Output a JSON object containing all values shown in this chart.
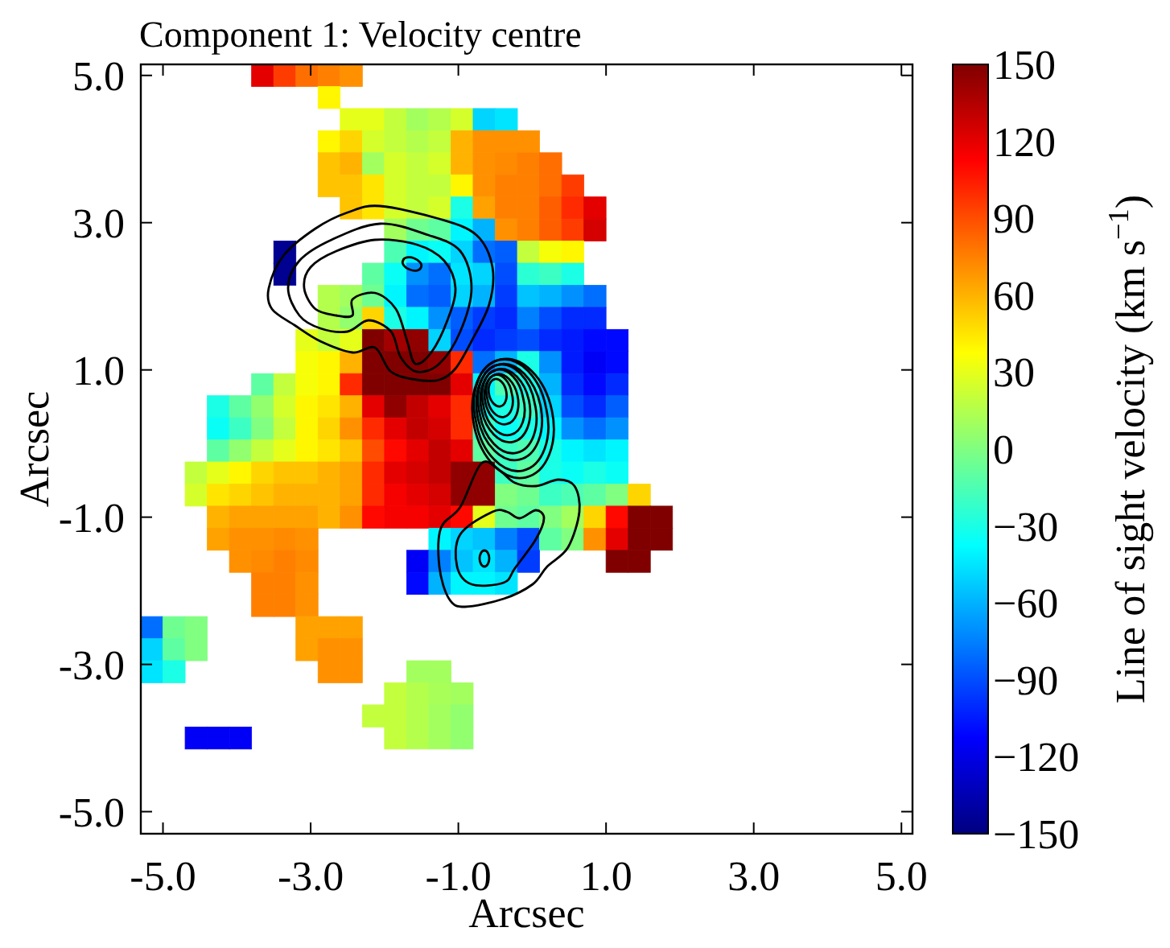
{
  "chart_data": {
    "type": "scatter",
    "title": "Component 1: Velocity centre",
    "xlabel": "Arcsec",
    "ylabel": "Arcsec",
    "clabel": "Line of sight velocity (km s$^{−1}$)",
    "marker": "square",
    "x": [
      -3.65,
      -3.35,
      -3.05,
      -2.75,
      -2.45,
      -2.75,
      -2.45,
      -2.15,
      -1.85,
      -1.55,
      -1.25,
      -0.95,
      -0.65,
      -0.35,
      -2.75,
      -2.45,
      -2.15,
      -1.85,
      -1.55,
      -1.25,
      -0.95,
      -0.65,
      -0.35,
      -0.05,
      -2.75,
      -2.45,
      -2.15,
      -1.85,
      -1.55,
      -1.25,
      -0.95,
      -0.65,
      -0.35,
      -0.05,
      0.25,
      -2.75,
      -2.45,
      -2.15,
      -1.85,
      -1.55,
      -1.25,
      -0.95,
      -0.65,
      -0.35,
      -0.05,
      0.25,
      0.55,
      -2.45,
      -2.15,
      -1.85,
      -1.55,
      -1.25,
      -0.95,
      -0.65,
      -0.35,
      -0.05,
      0.25,
      0.55,
      0.85,
      -1.85,
      -1.55,
      -1.25,
      -0.95,
      -0.65,
      -0.35,
      -0.05,
      0.25,
      0.55,
      0.85,
      -3.35,
      -1.85,
      -1.55,
      -1.25,
      -0.95,
      -0.65,
      -0.35,
      -0.05,
      0.25,
      0.55,
      -3.35,
      -2.15,
      -1.85,
      -1.55,
      -1.25,
      -0.95,
      -0.65,
      -0.35,
      -0.05,
      0.25,
      0.55,
      -2.75,
      -2.45,
      -2.15,
      -1.85,
      -1.55,
      -1.25,
      -0.95,
      -0.65,
      -0.35,
      -0.05,
      0.25,
      0.55,
      0.85,
      -2.75,
      -2.45,
      -2.15,
      -1.85,
      -1.55,
      -1.25,
      -0.95,
      -0.65,
      -0.35,
      -0.05,
      0.25,
      0.55,
      0.85,
      -3.05,
      -2.75,
      -2.45,
      -2.15,
      -1.85,
      -1.55,
      -1.25,
      -0.95,
      -0.65,
      -0.35,
      -0.05,
      0.25,
      0.55,
      0.85,
      1.15,
      -3.05,
      -2.75,
      -2.45,
      -2.15,
      -1.85,
      -1.55,
      -1.25,
      -0.95,
      -0.65,
      -0.35,
      -0.05,
      0.25,
      0.55,
      0.85,
      1.15,
      -3.65,
      -3.35,
      -3.05,
      -2.75,
      -2.45,
      -2.15,
      -1.85,
      -1.55,
      -1.25,
      -0.95,
      -0.65,
      -0.35,
      -0.05,
      0.25,
      0.55,
      0.85,
      1.15,
      -4.25,
      -3.95,
      -3.65,
      -3.35,
      -3.05,
      -2.75,
      -2.45,
      -2.15,
      -1.85,
      -1.55,
      -1.25,
      -0.95,
      -0.65,
      -0.35,
      -0.05,
      0.25,
      0.55,
      0.85,
      1.15,
      -4.25,
      -3.95,
      -3.65,
      -3.35,
      -3.05,
      -2.75,
      -2.45,
      -2.15,
      -1.85,
      -1.55,
      -1.25,
      -0.95,
      -0.65,
      -0.35,
      -0.05,
      0.25,
      0.55,
      0.85,
      1.15,
      -4.25,
      -3.95,
      -3.65,
      -3.35,
      -3.05,
      -2.75,
      -2.45,
      -2.15,
      -1.85,
      -1.55,
      -1.25,
      -0.95,
      -0.65,
      -0.35,
      -0.05,
      0.25,
      0.55,
      0.85,
      1.15,
      -4.55,
      -4.25,
      -3.95,
      -3.65,
      -3.35,
      -3.05,
      -2.75,
      -2.45,
      -2.15,
      -1.85,
      -1.55,
      -1.25,
      -0.95,
      -0.65,
      -0.35,
      -0.05,
      0.25,
      0.55,
      0.85,
      1.15,
      -4.55,
      -4.25,
      -3.95,
      -3.65,
      -3.35,
      -3.05,
      -2.75,
      -2.45,
      -2.15,
      -1.85,
      -1.55,
      -1.25,
      -0.95,
      -0.65,
      -0.35,
      -0.05,
      0.25,
      0.55,
      0.85,
      1.15,
      1.45,
      -4.25,
      -3.95,
      -3.65,
      -3.35,
      -3.05,
      -2.75,
      -2.45,
      -2.15,
      -1.85,
      -1.55,
      -1.25,
      -0.95,
      -0.65,
      -0.35,
      -0.05,
      0.25,
      0.55,
      0.85,
      1.15,
      1.45,
      1.75,
      -4.25,
      -3.95,
      -3.65,
      -3.35,
      -3.05,
      -1.25,
      -0.95,
      -0.65,
      -0.35,
      -0.05,
      0.25,
      0.55,
      0.85,
      1.15,
      1.45,
      1.75,
      -3.95,
      -3.65,
      -3.35,
      -3.05,
      -1.55,
      -1.25,
      -0.95,
      -0.65,
      -0.35,
      -0.05,
      1.15,
      1.45,
      -3.65,
      -3.35,
      -3.05,
      -1.55,
      -1.25,
      -0.95,
      -0.65,
      -0.35,
      -3.65,
      -3.35,
      -3.05,
      -5.15,
      -4.85,
      -4.55,
      -3.05,
      -2.75,
      -2.45,
      -5.15,
      -4.85,
      -4.55,
      -3.05,
      -2.75,
      -2.45,
      -5.15,
      -4.85,
      -2.75,
      -2.45,
      -1.55,
      -1.25,
      -1.85,
      -1.55,
      -1.25,
      -0.95,
      -2.15,
      -1.85,
      -1.55,
      -1.25,
      -0.95,
      -4.55,
      -4.25,
      -3.95,
      -1.85,
      -1.55,
      -1.25,
      -0.95
    ],
    "values": [
      5,
      5,
      5,
      5,
      5,
      4.7,
      4.4,
      4.4,
      4.4,
      4.4,
      4.4,
      4.4,
      4.4,
      4.4,
      4.1,
      4.1,
      4.1,
      4.1,
      4.1,
      4.1,
      4.1,
      4.1,
      4.1,
      4.1,
      3.8,
      3.8,
      3.8,
      3.8,
      3.8,
      3.8,
      3.8,
      3.8,
      3.8,
      3.8,
      3.8,
      3.5,
      3.5,
      3.5,
      3.5,
      3.5,
      3.5,
      3.5,
      3.5,
      3.5,
      3.5,
      3.5,
      3.5,
      3.2,
      3.2,
      3.2,
      3.2,
      3.2,
      3.2,
      3.2,
      3.2,
      3.2,
      3.2,
      3.2,
      3.2,
      2.9,
      2.9,
      2.9,
      2.9,
      2.9,
      2.9,
      2.9,
      2.9,
      2.9,
      2.9,
      2.6,
      2.6,
      2.6,
      2.6,
      2.6,
      2.6,
      2.6,
      2.6,
      2.6,
      2.6,
      2.3,
      2.3,
      2.3,
      2.3,
      2.3,
      2.3,
      2.3,
      2.3,
      2.3,
      2.3,
      2.3,
      2,
      2,
      2,
      2,
      2,
      2,
      2,
      2,
      2,
      2,
      2,
      2,
      2,
      1.7,
      1.7,
      1.7,
      1.7,
      1.7,
      1.7,
      1.7,
      1.7,
      1.7,
      1.7,
      1.7,
      1.7,
      1.7,
      1.4,
      1.4,
      1.4,
      1.4,
      1.4,
      1.4,
      1.4,
      1.4,
      1.4,
      1.4,
      1.4,
      1.4,
      1.4,
      1.4,
      1.4,
      1.1,
      1.1,
      1.1,
      1.1,
      1.1,
      1.1,
      1.1,
      1.1,
      1.1,
      1.1,
      1.1,
      1.1,
      1.1,
      1.1,
      1.1,
      0.8,
      0.8,
      0.8,
      0.8,
      0.8,
      0.8,
      0.8,
      0.8,
      0.8,
      0.8,
      0.8,
      0.8,
      0.8,
      0.8,
      0.8,
      0.8,
      0.8,
      0.5,
      0.5,
      0.5,
      0.5,
      0.5,
      0.5,
      0.5,
      0.5,
      0.5,
      0.5,
      0.5,
      0.5,
      0.5,
      0.5,
      0.5,
      0.5,
      0.5,
      0.5,
      0.5,
      0.2,
      0.2,
      0.2,
      0.2,
      0.2,
      0.2,
      0.2,
      0.2,
      0.2,
      0.2,
      0.2,
      0.2,
      0.2,
      0.2,
      0.2,
      0.2,
      0.2,
      0.2,
      0.2,
      -0.1,
      -0.1,
      -0.1,
      -0.1,
      -0.1,
      -0.1,
      -0.1,
      -0.1,
      -0.1,
      -0.1,
      -0.1,
      -0.1,
      -0.1,
      -0.1,
      -0.1,
      -0.1,
      -0.1,
      -0.1,
      -0.1,
      -0.4,
      -0.4,
      -0.4,
      -0.4,
      -0.4,
      -0.4,
      -0.4,
      -0.4,
      -0.4,
      -0.4,
      -0.4,
      -0.4,
      -0.4,
      -0.4,
      -0.4,
      -0.4,
      -0.4,
      -0.4,
      -0.4,
      -0.4,
      -0.7,
      -0.7,
      -0.7,
      -0.7,
      -0.7,
      -0.7,
      -0.7,
      -0.7,
      -0.7,
      -0.7,
      -0.7,
      -0.7,
      -0.7,
      -0.7,
      -0.7,
      -0.7,
      -0.7,
      -0.7,
      -0.7,
      -0.7,
      -0.7,
      -1,
      -1,
      -1,
      -1,
      -1,
      -1,
      -1,
      -1,
      -1,
      -1,
      -1,
      -1,
      -1,
      -1,
      -1,
      -1,
      -1,
      -1,
      -1,
      -1,
      -1,
      -1.3,
      -1.3,
      -1.3,
      -1.3,
      -1.3,
      -1.3,
      -1.3,
      -1.3,
      -1.3,
      -1.3,
      -1.3,
      -1.3,
      -1.3,
      -1.3,
      -1.3,
      -1.3,
      -1.6,
      -1.6,
      -1.6,
      -1.6,
      -1.6,
      -1.6,
      -1.6,
      -1.6,
      -1.6,
      -1.6,
      -1.6,
      -1.6,
      -1.9,
      -1.9,
      -1.9,
      -1.9,
      -1.9,
      -1.9,
      -1.9,
      -1.9,
      -2.2,
      -2.2,
      -2.2,
      -2.5,
      -2.5,
      -2.5,
      -2.5,
      -2.5,
      -2.5,
      -2.8,
      -2.8,
      -2.8,
      -2.8,
      -2.8,
      -2.8,
      -3.1,
      -3.1,
      -3.1,
      -3.1,
      -3.1,
      -3.1,
      -3.4,
      -3.4,
      -3.4,
      -3.4,
      -3.7,
      -3.7,
      -3.7,
      -3.7,
      -3.7,
      -4,
      -4,
      -4,
      -4,
      -4,
      -4,
      -4
    ],
    "cvalues": [
      120,
      95,
      80,
      75,
      70,
      40,
      30,
      30,
      20,
      10,
      15,
      25,
      -50,
      -45,
      40,
      50,
      25,
      20,
      15,
      20,
      60,
      70,
      70,
      70,
      55,
      60,
      10,
      25,
      20,
      25,
      60,
      70,
      72,
      75,
      80,
      55,
      55,
      45,
      25,
      20,
      20,
      40,
      70,
      75,
      75,
      80,
      95,
      55,
      45,
      25,
      20,
      25,
      -30,
      65,
      75,
      75,
      85,
      100,
      120,
      10,
      -5,
      -10,
      -40,
      -60,
      70,
      75,
      85,
      95,
      125,
      -145,
      -15,
      -40,
      -35,
      -50,
      -80,
      -85,
      20,
      35,
      40,
      -145,
      -10,
      -35,
      -70,
      -80,
      -45,
      -50,
      -90,
      -25,
      -20,
      -30,
      15,
      10,
      -5,
      -40,
      -80,
      -85,
      -50,
      -60,
      -95,
      -55,
      -60,
      -70,
      -80,
      15,
      5,
      50,
      -30,
      -40,
      -70,
      -85,
      -95,
      -100,
      -75,
      -90,
      -100,
      -100,
      30,
      20,
      30,
      150,
      140,
      145,
      -50,
      -90,
      -100,
      -95,
      -90,
      -100,
      -105,
      -110,
      -110,
      35,
      40,
      60,
      150,
      150,
      150,
      145,
      100,
      -80,
      -60,
      -30,
      -70,
      -105,
      -115,
      -110,
      -10,
      20,
      35,
      40,
      100,
      150,
      150,
      150,
      150,
      120,
      -40,
      -15,
      -30,
      -60,
      -100,
      -110,
      -100,
      -30,
      -10,
      5,
      25,
      40,
      45,
      60,
      120,
      145,
      130,
      120,
      100,
      -35,
      -30,
      -20,
      -50,
      -90,
      -100,
      -85,
      -35,
      -20,
      0,
      20,
      40,
      50,
      70,
      100,
      120,
      130,
      125,
      100,
      -20,
      -35,
      -30,
      -40,
      -70,
      -80,
      -70,
      -10,
      5,
      20,
      30,
      40,
      45,
      55,
      90,
      110,
      120,
      130,
      120,
      -10,
      -20,
      -15,
      -30,
      -40,
      -45,
      -40,
      20,
      30,
      40,
      50,
      55,
      55,
      60,
      65,
      100,
      120,
      125,
      130,
      145,
      145,
      -20,
      -10,
      -30,
      -35,
      -30,
      -35,
      25,
      45,
      50,
      55,
      60,
      60,
      60,
      65,
      100,
      115,
      120,
      125,
      145,
      145,
      0,
      -5,
      -20,
      -15,
      -10,
      0,
      50,
      60,
      65,
      65,
      65,
      65,
      60,
      70,
      110,
      115,
      115,
      120,
      110,
      30,
      -5,
      -10,
      0,
      10,
      50,
      110,
      150,
      150,
      65,
      70,
      70,
      72,
      70,
      -40,
      -50,
      -55,
      -75,
      -90,
      -10,
      0,
      70,
      120,
      150,
      150,
      70,
      72,
      75,
      72,
      -115,
      -75,
      -55,
      -45,
      -60,
      -95,
      150,
      150,
      75,
      75,
      70,
      -110,
      -60,
      -40,
      -40,
      -45,
      75,
      75,
      70,
      -80,
      -5,
      0,
      65,
      65,
      65,
      -50,
      -10,
      0,
      65,
      70,
      70,
      -45,
      -30,
      70,
      70,
      10,
      10,
      20,
      15,
      12,
      10,
      20,
      20,
      15,
      10,
      5,
      -115,
      -115,
      -115,
      20,
      15,
      10,
      5
    ],
    "xlim": [
      -5.3,
      5.15
    ],
    "ylim": [
      -5.3,
      5.15
    ],
    "xticks": [
      {
        "value": -5,
        "label": "-5.0"
      },
      {
        "value": -3,
        "label": "-3.0"
      },
      {
        "value": -1,
        "label": "-1.0"
      },
      {
        "value": 1,
        "label": "1.0"
      },
      {
        "value": 3,
        "label": "3.0"
      },
      {
        "value": 5,
        "label": "5.0"
      }
    ],
    "yticks": [
      {
        "value": -5,
        "label": "-5.0"
      },
      {
        "value": -3,
        "label": "-3.0"
      },
      {
        "value": -1,
        "label": "-1.0"
      },
      {
        "value": 1,
        "label": "1.0"
      },
      {
        "value": 3,
        "label": "3.0"
      },
      {
        "value": 5,
        "label": "5.0"
      }
    ],
    "clim": [
      -150,
      150
    ],
    "cticks": [
      {
        "value": -150,
        "label": "−150"
      },
      {
        "value": -120,
        "label": "−120"
      },
      {
        "value": -90,
        "label": "−90"
      },
      {
        "value": -60,
        "label": "−60"
      },
      {
        "value": -30,
        "label": "−30"
      },
      0,
      30,
      60,
      90,
      120,
      150
    ]
  }
}
